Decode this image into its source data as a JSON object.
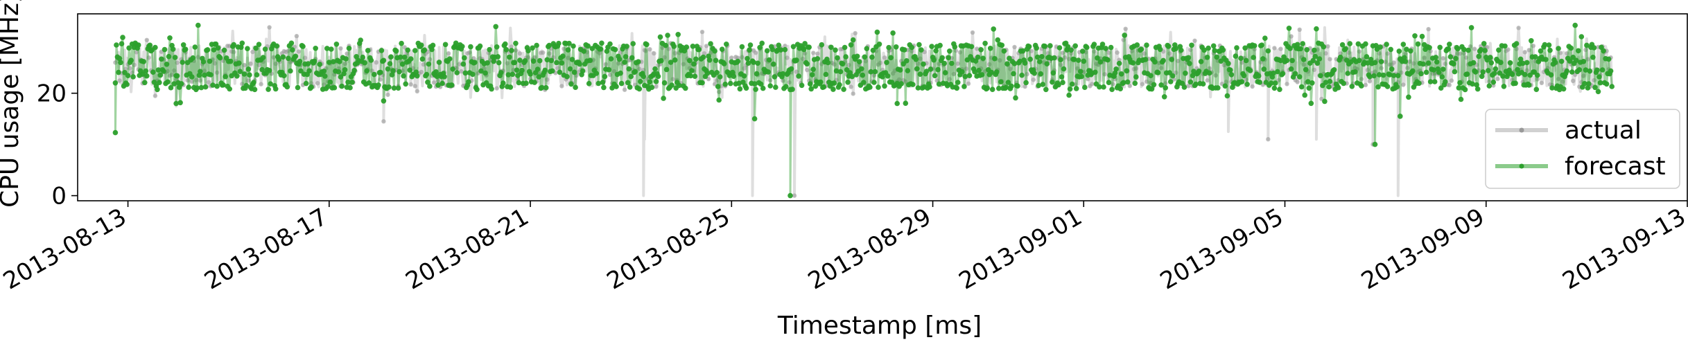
{
  "chart_data": {
    "type": "line",
    "title": "",
    "xlabel": "Timestamp [ms]",
    "ylabel": "CPU usage [MHz]",
    "x_range": [
      "2013-08-12",
      "2013-09-13"
    ],
    "ylim": [
      -1,
      35.5
    ],
    "x_ticks": [
      "2013-08-13",
      "2013-08-17",
      "2013-08-21",
      "2013-08-25",
      "2013-08-29",
      "2013-09-01",
      "2013-09-05",
      "2013-09-09",
      "2013-09-13"
    ],
    "y_ticks": [
      0,
      20
    ],
    "grid": false,
    "legend": {
      "placement": "lower-right",
      "entries": [
        {
          "label": "actual",
          "color": "#999999"
        },
        {
          "label": "forecast",
          "color": "#2ca02c"
        }
      ]
    },
    "series": [
      {
        "name": "actual",
        "color": "#999999",
        "x_start": "2013-08-12T18:00",
        "x_end": "2013-09-11T12:00",
        "typical_band": [
          22,
          28.5
        ],
        "values_note": "",
        "dips": [
          {
            "x": "2013-08-13T23:00",
            "y": 17.5
          },
          {
            "x": "2013-08-18T02:00",
            "y": 14.5
          },
          {
            "x": "2013-08-23T06:00",
            "y": 0
          },
          {
            "x": "2013-08-23T06:30",
            "y": 11
          },
          {
            "x": "2013-08-25T10:00",
            "y": 0
          },
          {
            "x": "2013-08-26T06:00",
            "y": 0
          },
          {
            "x": "2013-09-03T21:00",
            "y": 12.5
          },
          {
            "x": "2013-09-04T16:00",
            "y": 11
          },
          {
            "x": "2013-09-05T15:00",
            "y": 11
          },
          {
            "x": "2013-09-06T18:00",
            "y": 10
          },
          {
            "x": "2013-09-07T06:00",
            "y": 0
          }
        ]
      },
      {
        "name": "forecast",
        "color": "#2ca02c",
        "x_start": "2013-08-12T18:00",
        "x_end": "2013-09-11T12:00",
        "typical_band": [
          21.5,
          29
        ],
        "dips": [
          {
            "x": "2013-08-12T18:00",
            "y": 12.3
          },
          {
            "x": "2013-08-13T23:00",
            "y": 18
          },
          {
            "x": "2013-08-18T02:00",
            "y": 18.5
          },
          {
            "x": "2013-08-25T11:00",
            "y": 15
          },
          {
            "x": "2013-08-26T04:00",
            "y": 0
          },
          {
            "x": "2013-08-28T07:00",
            "y": 18
          },
          {
            "x": "2013-09-06T19:00",
            "y": 10
          },
          {
            "x": "2013-09-07T07:00",
            "y": 15.5
          }
        ]
      }
    ]
  }
}
